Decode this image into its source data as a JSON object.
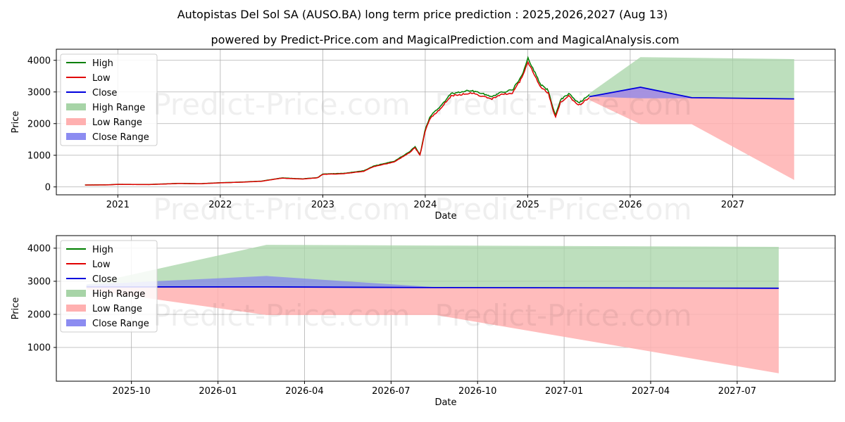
{
  "title": "Autopistas Del Sol SA (AUSO.BA) long term price prediction : 2025,2026,2027 (Aug 13)",
  "subtitle": "powered by Predict-Price.com and MagicalPrediction.com and MagicalAnalysis.com",
  "watermark": "Predict-Price.com",
  "colors": {
    "high": "#008000",
    "low": "#e00000",
    "close": "#0000dd",
    "high_range": "#a7d4a7",
    "low_range": "#ffb0b0",
    "close_range": "#8080f0"
  },
  "chart_data": [
    {
      "type": "line",
      "title": "",
      "xlabel": "Date",
      "ylabel": "Price",
      "xlim": [
        2020.4,
        2028.0
      ],
      "ylim": [
        -250,
        4350
      ],
      "xticks": [
        2021,
        2022,
        2023,
        2024,
        2025,
        2026,
        2027
      ],
      "xtick_labels": [
        "2021",
        "2022",
        "2023",
        "2024",
        "2025",
        "2026",
        "2027"
      ],
      "yticks": [
        0,
        1000,
        2000,
        3000,
        4000
      ],
      "ytick_labels": [
        "0",
        "1000",
        "2000",
        "3000",
        "4000"
      ],
      "legend": [
        "High",
        "Low",
        "Close",
        "High Range",
        "Low Range",
        "Close Range"
      ],
      "legend_position": "upper-left",
      "grid": true,
      "history_anchors": {
        "x": [
          2020.68,
          2020.9,
          2021.0,
          2021.3,
          2021.6,
          2021.8,
          2022.0,
          2022.2,
          2022.4,
          2022.6,
          2022.8,
          2022.95,
          2023.0,
          2023.2,
          2023.4,
          2023.5,
          2023.7,
          2023.8,
          2023.85,
          2023.9,
          2023.95,
          2024.0,
          2024.05,
          2024.15,
          2024.25,
          2024.35,
          2024.45,
          2024.55,
          2024.65,
          2024.75,
          2024.85,
          2024.95,
          2025.0,
          2025.05,
          2025.12,
          2025.2,
          2025.27,
          2025.32,
          2025.4,
          2025.5,
          2025.6
        ],
        "y": [
          60,
          65,
          80,
          75,
          110,
          100,
          130,
          150,
          180,
          280,
          250,
          290,
          400,
          420,
          500,
          650,
          800,
          1000,
          1100,
          1250,
          1000,
          1800,
          2200,
          2500,
          2900,
          2950,
          3000,
          2900,
          2800,
          2950,
          3000,
          3500,
          4000,
          3700,
          3200,
          3000,
          2200,
          2700,
          2900,
          2600,
          2850
        ]
      },
      "forecast": {
        "x": [
          2025.6,
          2026.1,
          2026.6,
          2027.6
        ],
        "close": [
          2850,
          3150,
          2820,
          2780
        ],
        "high": [
          2950,
          4100,
          4080,
          4040
        ],
        "low": [
          2750,
          1980,
          1980,
          220
        ],
        "close_range_upper": [
          2850,
          3150,
          2820,
          2780
        ],
        "close_range_lower": [
          2850,
          2800,
          2800,
          2780
        ]
      }
    },
    {
      "type": "line",
      "title": "",
      "xlabel": "Date",
      "ylabel": "Price",
      "xlim": [
        2025.533,
        2027.783
      ],
      "ylim": [
        -20,
        4380
      ],
      "xticks": [
        2025.75,
        2026.0,
        2026.25,
        2026.5,
        2026.75,
        2027.0,
        2027.25,
        2027.5
      ],
      "xtick_labels": [
        "2025-10",
        "2026-01",
        "2026-04",
        "2026-07",
        "2026-10",
        "2027-01",
        "2027-04",
        "2027-07"
      ],
      "yticks": [
        1000,
        2000,
        3000,
        4000
      ],
      "ytick_labels": [
        "1000",
        "2000",
        "3000",
        "4000"
      ],
      "legend": [
        "High",
        "Low",
        "Close",
        "High Range",
        "Low Range",
        "Close Range"
      ],
      "legend_position": "upper-left",
      "grid": true,
      "forecast": {
        "x": [
          2025.62,
          2026.14,
          2026.63,
          2027.62
        ],
        "close": [
          2830,
          2830,
          2810,
          2790
        ],
        "high": [
          2900,
          4100,
          4080,
          4040
        ],
        "low": [
          2750,
          1980,
          1980,
          220
        ],
        "close_range_upper": [
          2900,
          3160,
          2820,
          2790
        ],
        "close_range_lower": [
          2830,
          2830,
          2810,
          2790
        ]
      }
    }
  ]
}
